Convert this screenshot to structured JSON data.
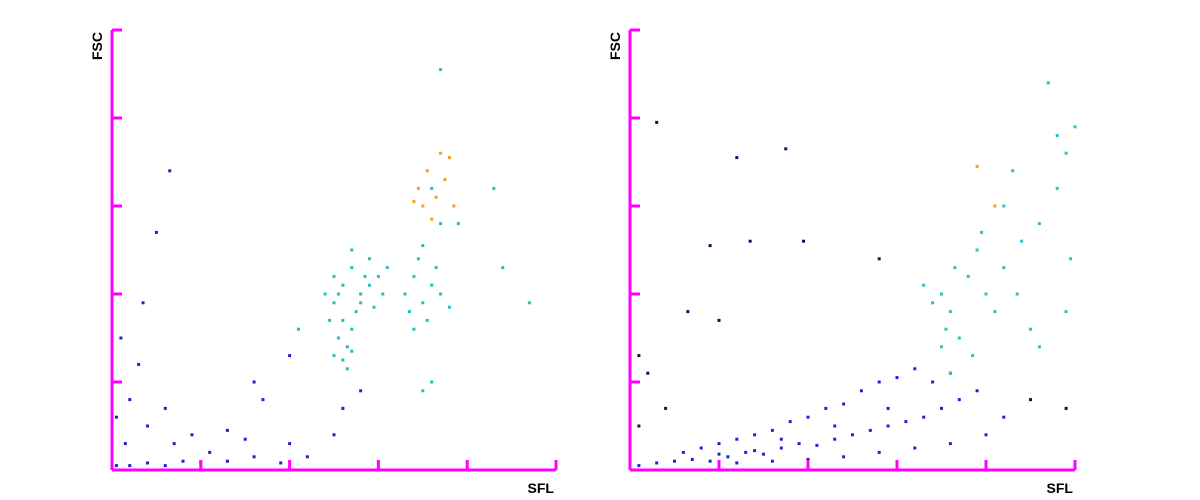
{
  "chart_data": [
    {
      "type": "scatter",
      "x_label": "SFL",
      "y_label": "FSC",
      "xlim": [
        0,
        5
      ],
      "ylim": [
        0,
        5
      ],
      "xticks": [
        0,
        1,
        2,
        3,
        4,
        5
      ],
      "yticks": [
        0,
        1,
        2,
        3,
        4,
        5
      ],
      "axis_color": "#ff00ff",
      "series": [
        {
          "color": "#20c0c0",
          "x": [
            2.5,
            2.55,
            2.6,
            2.5,
            2.6,
            2.7,
            2.65,
            2.7,
            2.75,
            2.8,
            2.85,
            2.9,
            2.6,
            2.55,
            2.5,
            2.7,
            2.8,
            2.9,
            3.0,
            3.05,
            3.1,
            2.95,
            2.65,
            2.7,
            2.45,
            2.4,
            3.3,
            3.4,
            3.5,
            3.6,
            3.45,
            3.55,
            3.7,
            3.35,
            3.65,
            3.8,
            3.5,
            3.4,
            3.6,
            3.7,
            4.3,
            3.9,
            2.1,
            4.7,
            4.4,
            3.6,
            3.5,
            3.7
          ],
          "values": [
            1.3,
            1.5,
            1.7,
            1.9,
            2.1,
            2.3,
            1.4,
            1.6,
            1.8,
            2.0,
            2.2,
            2.4,
            1.25,
            2.0,
            2.2,
            2.5,
            1.9,
            2.1,
            2.2,
            2.0,
            2.3,
            1.85,
            1.15,
            1.35,
            1.7,
            2.0,
            2.0,
            2.2,
            1.9,
            2.1,
            2.4,
            1.7,
            2.0,
            1.8,
            2.3,
            1.85,
            2.55,
            1.6,
            3.2,
            2.8,
            3.2,
            2.8,
            1.6,
            1.9,
            2.3,
            1.0,
            0.9,
            4.55
          ]
        },
        {
          "color": "#f0a020",
          "x": [
            3.45,
            3.55,
            3.65,
            3.75,
            3.8,
            3.5,
            3.6,
            3.85,
            3.4,
            3.7
          ],
          "values": [
            3.2,
            3.4,
            3.1,
            3.3,
            3.55,
            3.0,
            2.85,
            3.0,
            3.05,
            3.6
          ]
        },
        {
          "color": "#2020d0",
          "x": [
            0.05,
            0.2,
            0.4,
            0.6,
            0.8,
            1.0,
            1.3,
            1.6,
            2.0,
            2.5,
            2.6,
            2.8,
            0.1,
            0.3,
            0.2,
            0.4,
            0.6,
            0.7,
            0.9,
            1.1,
            1.3,
            1.6,
            1.7,
            2.0,
            0.65,
            0.5,
            0.35,
            0.15,
            0.05,
            1.5,
            2.2,
            1.9
          ],
          "values": [
            0.05,
            0.05,
            0.08,
            0.05,
            0.1,
            0.08,
            0.1,
            0.15,
            0.3,
            0.4,
            0.7,
            0.9,
            1.5,
            1.2,
            0.8,
            0.5,
            0.7,
            0.3,
            0.4,
            0.2,
            0.45,
            1.0,
            0.8,
            1.3,
            3.4,
            2.7,
            1.9,
            0.3,
            0.6,
            0.35,
            0.15,
            0.08
          ]
        }
      ]
    },
    {
      "type": "scatter",
      "x_label": "SFL",
      "y_label": "FSC",
      "xlim": [
        0,
        5
      ],
      "ylim": [
        0,
        5
      ],
      "xticks": [
        0,
        1,
        2,
        3,
        4,
        5
      ],
      "yticks": [
        0,
        1,
        2,
        3,
        4,
        5
      ],
      "axis_color": "#ff00ff",
      "series": [
        {
          "color": "#2020e0",
          "x": [
            0.1,
            0.3,
            0.5,
            0.7,
            0.9,
            1.1,
            1.3,
            1.5,
            1.7,
            1.9,
            2.1,
            2.3,
            2.5,
            2.7,
            2.9,
            3.1,
            3.3,
            3.5,
            3.7,
            0.6,
            0.8,
            1.0,
            1.2,
            1.4,
            1.6,
            1.8,
            2.0,
            2.2,
            2.4,
            2.6,
            2.8,
            3.0,
            3.2,
            3.4,
            3.6,
            1.2,
            1.6,
            2.0,
            2.4,
            2.8,
            3.2,
            3.6,
            4.0,
            4.2,
            3.9,
            2.9,
            2.3,
            1.7,
            1.4,
            1.0
          ],
          "values": [
            0.05,
            0.08,
            0.1,
            0.12,
            0.1,
            0.15,
            0.2,
            0.18,
            0.25,
            0.3,
            0.28,
            0.35,
            0.4,
            0.45,
            0.5,
            0.55,
            0.6,
            0.7,
            0.8,
            0.2,
            0.25,
            0.3,
            0.35,
            0.4,
            0.45,
            0.55,
            0.6,
            0.7,
            0.75,
            0.9,
            1.0,
            1.05,
            1.15,
            1.0,
            1.1,
            0.08,
            0.1,
            0.12,
            0.15,
            0.2,
            0.25,
            0.3,
            0.4,
            0.6,
            0.9,
            0.7,
            0.5,
            0.35,
            0.22,
            0.18
          ]
        },
        {
          "color": "#101060",
          "x": [
            0.3,
            1.2,
            1.75,
            0.9,
            1.35,
            1.95,
            1.0,
            0.65,
            0.2,
            0.1,
            2.8,
            4.5,
            4.9,
            0.4,
            0.1
          ],
          "values": [
            3.95,
            3.55,
            3.65,
            2.55,
            2.6,
            2.6,
            1.7,
            1.8,
            1.1,
            1.3,
            2.4,
            0.8,
            0.7,
            0.7,
            0.5
          ]
        },
        {
          "color": "#30c0c0",
          "x": [
            3.4,
            3.5,
            3.6,
            3.7,
            3.55,
            3.8,
            3.9,
            3.65,
            3.5,
            3.6,
            4.0,
            4.2,
            4.4,
            4.1,
            4.5,
            4.3,
            4.6,
            4.8,
            4.9,
            4.95,
            5.0,
            4.7,
            4.8,
            4.2,
            3.95,
            3.3,
            4.6,
            4.9,
            3.85,
            4.35
          ],
          "values": [
            1.9,
            2.0,
            1.8,
            1.5,
            1.6,
            2.2,
            2.5,
            2.3,
            1.4,
            1.1,
            2.0,
            2.3,
            2.6,
            1.8,
            1.6,
            3.4,
            2.8,
            3.2,
            3.6,
            2.4,
            3.9,
            4.4,
            3.8,
            3.0,
            2.7,
            2.1,
            1.4,
            1.8,
            1.3,
            2.0
          ]
        },
        {
          "color": "#f0a020",
          "x": [
            4.1,
            3.9
          ],
          "values": [
            3.0,
            3.45
          ]
        }
      ]
    }
  ]
}
